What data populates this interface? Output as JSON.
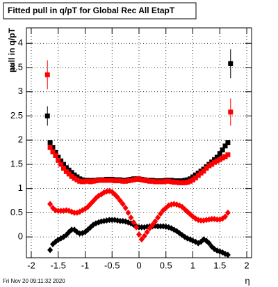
{
  "chart_data": {
    "type": "scatter",
    "title": "Fitted pull in q/pT for Global Rec All EtapT",
    "y_label": "pull in q/pT",
    "x_label": "η",
    "timestamp": "Fri Nov 20 09:11:32 2020",
    "xlim": [
      -2.09,
      2.09
    ],
    "ylim": [
      -0.43,
      4.32
    ],
    "xticks": [
      -2,
      -1.5,
      -1,
      -0.5,
      0,
      0.5,
      1,
      1.5,
      2
    ],
    "yticks": [
      0,
      0.5,
      1,
      1.5,
      2,
      2.5,
      3,
      3.5,
      4
    ],
    "grid": true,
    "x": [
      -1.7,
      -1.65,
      -1.6,
      -1.55,
      -1.5,
      -1.45,
      -1.4,
      -1.35,
      -1.3,
      -1.25,
      -1.2,
      -1.15,
      -1.1,
      -1.05,
      -1.0,
      -0.95,
      -0.9,
      -0.85,
      -0.8,
      -0.75,
      -0.7,
      -0.65,
      -0.6,
      -0.55,
      -0.5,
      -0.45,
      -0.4,
      -0.35,
      -0.3,
      -0.25,
      -0.2,
      -0.15,
      -0.1,
      -0.05,
      0,
      0.05,
      0.1,
      0.15,
      0.2,
      0.25,
      0.3,
      0.35,
      0.4,
      0.45,
      0.5,
      0.55,
      0.6,
      0.65,
      0.7,
      0.75,
      0.8,
      0.85,
      0.9,
      0.95,
      1.0,
      1.05,
      1.1,
      1.15,
      1.2,
      1.25,
      1.3,
      1.35,
      1.4,
      1.45,
      1.5,
      1.55,
      1.6,
      1.65,
      1.7
    ],
    "series": [
      {
        "color": "#000000",
        "marker": "square",
        "values": [
          2.5,
          1.95,
          1.85,
          1.75,
          1.65,
          1.57,
          1.5,
          1.43,
          1.38,
          1.33,
          1.28,
          1.24,
          1.2,
          1.18,
          1.17,
          1.17,
          1.16,
          1.17,
          1.17,
          1.18,
          1.18,
          1.18,
          1.19,
          1.19,
          1.19,
          1.18,
          1.18,
          1.18,
          1.17,
          1.17,
          1.18,
          1.19,
          1.2,
          1.2,
          1.2,
          1.19,
          1.18,
          1.17,
          1.17,
          1.17,
          1.16,
          1.16,
          1.16,
          1.16,
          1.17,
          1.17,
          1.17,
          1.16,
          1.16,
          1.16,
          1.16,
          1.17,
          1.18,
          1.2,
          1.24,
          1.28,
          1.32,
          1.36,
          1.4,
          1.45,
          1.5,
          1.55,
          1.6,
          1.65,
          1.72,
          1.8,
          1.88,
          1.95,
          3.58
        ],
        "errors": [
          0.2,
          null,
          null,
          null,
          null,
          null,
          null,
          null,
          null,
          null,
          null,
          null,
          null,
          null,
          null,
          null,
          null,
          null,
          null,
          null,
          null,
          null,
          null,
          null,
          null,
          null,
          null,
          null,
          null,
          null,
          null,
          null,
          null,
          null,
          null,
          null,
          null,
          null,
          null,
          null,
          null,
          null,
          null,
          null,
          null,
          null,
          null,
          null,
          null,
          null,
          null,
          null,
          null,
          null,
          null,
          null,
          null,
          null,
          null,
          null,
          null,
          null,
          null,
          null,
          null,
          null,
          null,
          null,
          0.3
        ]
      },
      {
        "color": "#ff0000",
        "marker": "square",
        "values": [
          3.35,
          1.85,
          1.76,
          1.68,
          1.58,
          1.5,
          1.42,
          1.35,
          1.3,
          1.25,
          1.21,
          1.18,
          1.15,
          1.14,
          1.15,
          1.15,
          1.14,
          1.15,
          1.16,
          1.17,
          1.17,
          1.17,
          1.17,
          1.17,
          1.17,
          1.16,
          1.16,
          1.16,
          1.15,
          1.15,
          1.16,
          1.17,
          1.18,
          1.19,
          1.2,
          1.18,
          1.17,
          1.16,
          1.15,
          1.15,
          1.14,
          1.14,
          1.14,
          1.14,
          1.15,
          1.15,
          1.14,
          1.13,
          1.13,
          1.12,
          1.12,
          1.12,
          1.13,
          1.15,
          1.18,
          1.22,
          1.27,
          1.32,
          1.36,
          1.42,
          1.47,
          1.5,
          1.54,
          1.57,
          1.6,
          1.63,
          1.66,
          1.7,
          2.58
        ],
        "errors": [
          0.3,
          null,
          null,
          null,
          null,
          null,
          null,
          null,
          null,
          null,
          null,
          null,
          null,
          null,
          null,
          null,
          null,
          null,
          null,
          null,
          null,
          null,
          null,
          null,
          null,
          null,
          null,
          null,
          null,
          null,
          null,
          null,
          null,
          null,
          null,
          null,
          null,
          null,
          null,
          null,
          null,
          null,
          null,
          null,
          null,
          null,
          null,
          null,
          null,
          null,
          null,
          null,
          null,
          null,
          null,
          null,
          null,
          null,
          null,
          null,
          null,
          null,
          null,
          null,
          null,
          null,
          null,
          null,
          0.28
        ]
      },
      {
        "color": "#000000",
        "marker": "diamond",
        "values": [
          null,
          -0.27,
          -0.15,
          -0.1,
          -0.06,
          -0.03,
          0.0,
          0.04,
          0.1,
          0.15,
          0.15,
          0.1,
          0.07,
          0.08,
          0.1,
          0.15,
          0.2,
          0.25,
          0.28,
          0.3,
          0.32,
          0.33,
          0.34,
          0.35,
          0.35,
          0.35,
          0.34,
          0.33,
          0.33,
          0.32,
          0.3,
          0.28,
          0.25,
          0.22,
          0.2,
          0.2,
          0.2,
          0.21,
          0.22,
          0.22,
          0.23,
          0.22,
          0.22,
          0.22,
          0.21,
          0.2,
          0.18,
          0.15,
          0.12,
          0.08,
          0.04,
          0.0,
          -0.03,
          -0.05,
          -0.08,
          -0.1,
          -0.13,
          -0.1,
          -0.05,
          -0.08,
          -0.13,
          -0.2,
          -0.25,
          -0.28,
          -0.3,
          -0.32,
          -0.35,
          -0.37,
          null
        ]
      },
      {
        "color": "#ff0000",
        "marker": "diamond",
        "values": [
          null,
          0.68,
          0.6,
          0.55,
          0.54,
          0.54,
          0.54,
          0.55,
          0.54,
          0.52,
          0.5,
          0.5,
          0.52,
          0.55,
          0.58,
          0.62,
          0.68,
          0.74,
          0.8,
          0.85,
          0.88,
          0.92,
          0.94,
          0.95,
          0.93,
          0.88,
          0.82,
          0.75,
          0.68,
          0.6,
          0.5,
          0.4,
          0.3,
          0.2,
          0.05,
          -0.05,
          0.02,
          0.1,
          0.18,
          0.25,
          0.32,
          0.4,
          0.48,
          0.55,
          0.6,
          0.65,
          0.67,
          0.68,
          0.67,
          0.65,
          0.62,
          0.57,
          0.52,
          0.47,
          0.42,
          0.38,
          0.35,
          0.34,
          0.34,
          0.35,
          0.36,
          0.37,
          0.37,
          0.36,
          0.36,
          0.38,
          0.42,
          0.5,
          null
        ]
      }
    ]
  }
}
